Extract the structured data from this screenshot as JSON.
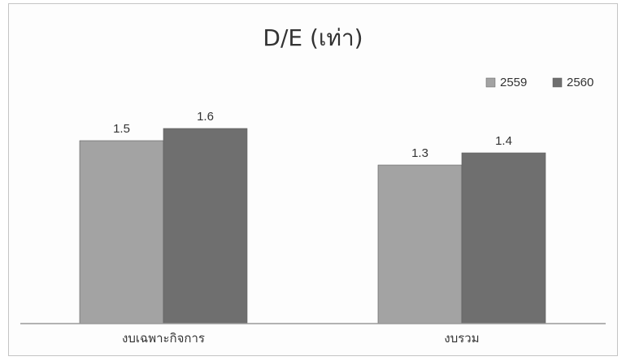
{
  "chart_data": {
    "type": "bar",
    "title": "D/E (เท่า)",
    "categories": [
      "งบเฉพาะกิจการ",
      "งบรวม"
    ],
    "series": [
      {
        "name": "2559",
        "values": [
          1.5,
          1.3
        ],
        "color": "#a3a3a3"
      },
      {
        "name": "2560",
        "values": [
          1.6,
          1.4
        ],
        "color": "#6f6f6f"
      }
    ],
    "data_labels": [
      [
        "1.5",
        "1.3"
      ],
      [
        "1.6",
        "1.4"
      ]
    ],
    "xlabel": "",
    "ylabel": "",
    "ylim": [
      0,
      2
    ],
    "grid": false,
    "legend_position": "top-right"
  }
}
